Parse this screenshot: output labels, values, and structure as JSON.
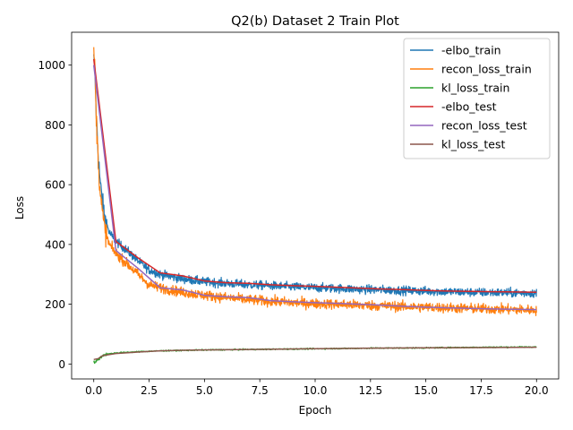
{
  "chart_data": {
    "type": "line",
    "title": "Q2(b) Dataset 2 Train Plot",
    "xlabel": "Epoch",
    "ylabel": "Loss",
    "xlim": [
      -1,
      21
    ],
    "ylim": [
      -50,
      1110
    ],
    "xticks": [
      0.0,
      2.5,
      5.0,
      7.5,
      10.0,
      12.5,
      15.0,
      17.5,
      20.0
    ],
    "xtick_labels": [
      "0.0",
      "2.5",
      "5.0",
      "7.5",
      "10.0",
      "12.5",
      "15.0",
      "17.5",
      "20.0"
    ],
    "yticks": [
      0,
      200,
      400,
      600,
      800,
      1000
    ],
    "ytick_labels": [
      "0",
      "200",
      "400",
      "600",
      "800",
      "1000"
    ],
    "legend_position": "top-right",
    "series": [
      {
        "name": "-elbo_train",
        "color": "#1f77b4",
        "kind": "noisy",
        "noise": 14,
        "x": [
          0,
          0.05,
          0.1,
          0.2,
          0.3,
          0.4,
          0.5,
          0.7,
          1.0,
          1.5,
          2.0,
          2.5,
          3.0,
          4.0,
          5.0,
          6.0,
          7.0,
          8.0,
          9.0,
          10.0,
          11.0,
          12.0,
          13.0,
          14.0,
          15.0,
          16.0,
          17.0,
          18.0,
          19.0,
          20.0
        ],
        "values": [
          1020,
          980,
          860,
          700,
          600,
          540,
          490,
          440,
          410,
          380,
          345,
          315,
          300,
          285,
          275,
          270,
          265,
          262,
          258,
          255,
          253,
          250,
          248,
          246,
          244,
          242,
          240,
          239,
          238,
          237
        ]
      },
      {
        "name": "recon_loss_train",
        "color": "#ff7f0e",
        "kind": "noisy",
        "noise": 16,
        "x": [
          0,
          0.05,
          0.1,
          0.2,
          0.3,
          0.4,
          0.5,
          0.7,
          1.0,
          1.5,
          2.0,
          2.5,
          3.0,
          4.0,
          5.0,
          6.0,
          7.0,
          8.0,
          9.0,
          10.0,
          11.0,
          12.0,
          13.0,
          14.0,
          15.0,
          16.0,
          17.0,
          18.0,
          19.0,
          20.0
        ],
        "values": [
          1050,
          1000,
          850,
          680,
          570,
          500,
          450,
          400,
          370,
          335,
          300,
          265,
          255,
          240,
          230,
          222,
          215,
          210,
          205,
          202,
          200,
          197,
          195,
          192,
          190,
          188,
          186,
          184,
          182,
          180
        ]
      },
      {
        "name": "kl_loss_train",
        "color": "#2ca02c",
        "kind": "noisy",
        "noise": 2,
        "x": [
          0,
          0.1,
          0.2,
          0.4,
          0.6,
          1.0,
          1.5,
          2.0,
          3.0,
          5.0,
          7.5,
          10.0,
          12.5,
          15.0,
          17.5,
          20.0
        ],
        "values": [
          5,
          8,
          15,
          28,
          33,
          37,
          39,
          41,
          44,
          47,
          49,
          51,
          53,
          54,
          56,
          57
        ]
      },
      {
        "name": "-elbo_test",
        "color": "#d62728",
        "kind": "line",
        "x": [
          0,
          1,
          2,
          3,
          4,
          5,
          6,
          7,
          8,
          9,
          10,
          11,
          12,
          13,
          14,
          15,
          16,
          17,
          18,
          19,
          20
        ],
        "values": [
          1020,
          410,
          355,
          305,
          295,
          278,
          272,
          270,
          265,
          262,
          260,
          257,
          254,
          251,
          249,
          246,
          244,
          243,
          242,
          241,
          240
        ]
      },
      {
        "name": "recon_loss_test",
        "color": "#9467bd",
        "kind": "line",
        "x": [
          0,
          1,
          2,
          3,
          4,
          5,
          6,
          7,
          8,
          9,
          10,
          11,
          12,
          13,
          14,
          15,
          16,
          17,
          18,
          19,
          20
        ],
        "values": [
          1000,
          380,
          320,
          255,
          248,
          230,
          225,
          222,
          212,
          208,
          205,
          203,
          200,
          197,
          193,
          190,
          188,
          186,
          184,
          183,
          182
        ]
      },
      {
        "name": "kl_loss_test",
        "color": "#8c564b",
        "kind": "line",
        "x": [
          0,
          0.2,
          0.4,
          1,
          2,
          3,
          4,
          5,
          7.5,
          10,
          12.5,
          15,
          17.5,
          20
        ],
        "values": [
          15,
          18,
          28,
          35,
          40,
          44,
          46,
          47,
          49,
          51,
          53,
          54,
          55,
          56
        ]
      }
    ]
  }
}
